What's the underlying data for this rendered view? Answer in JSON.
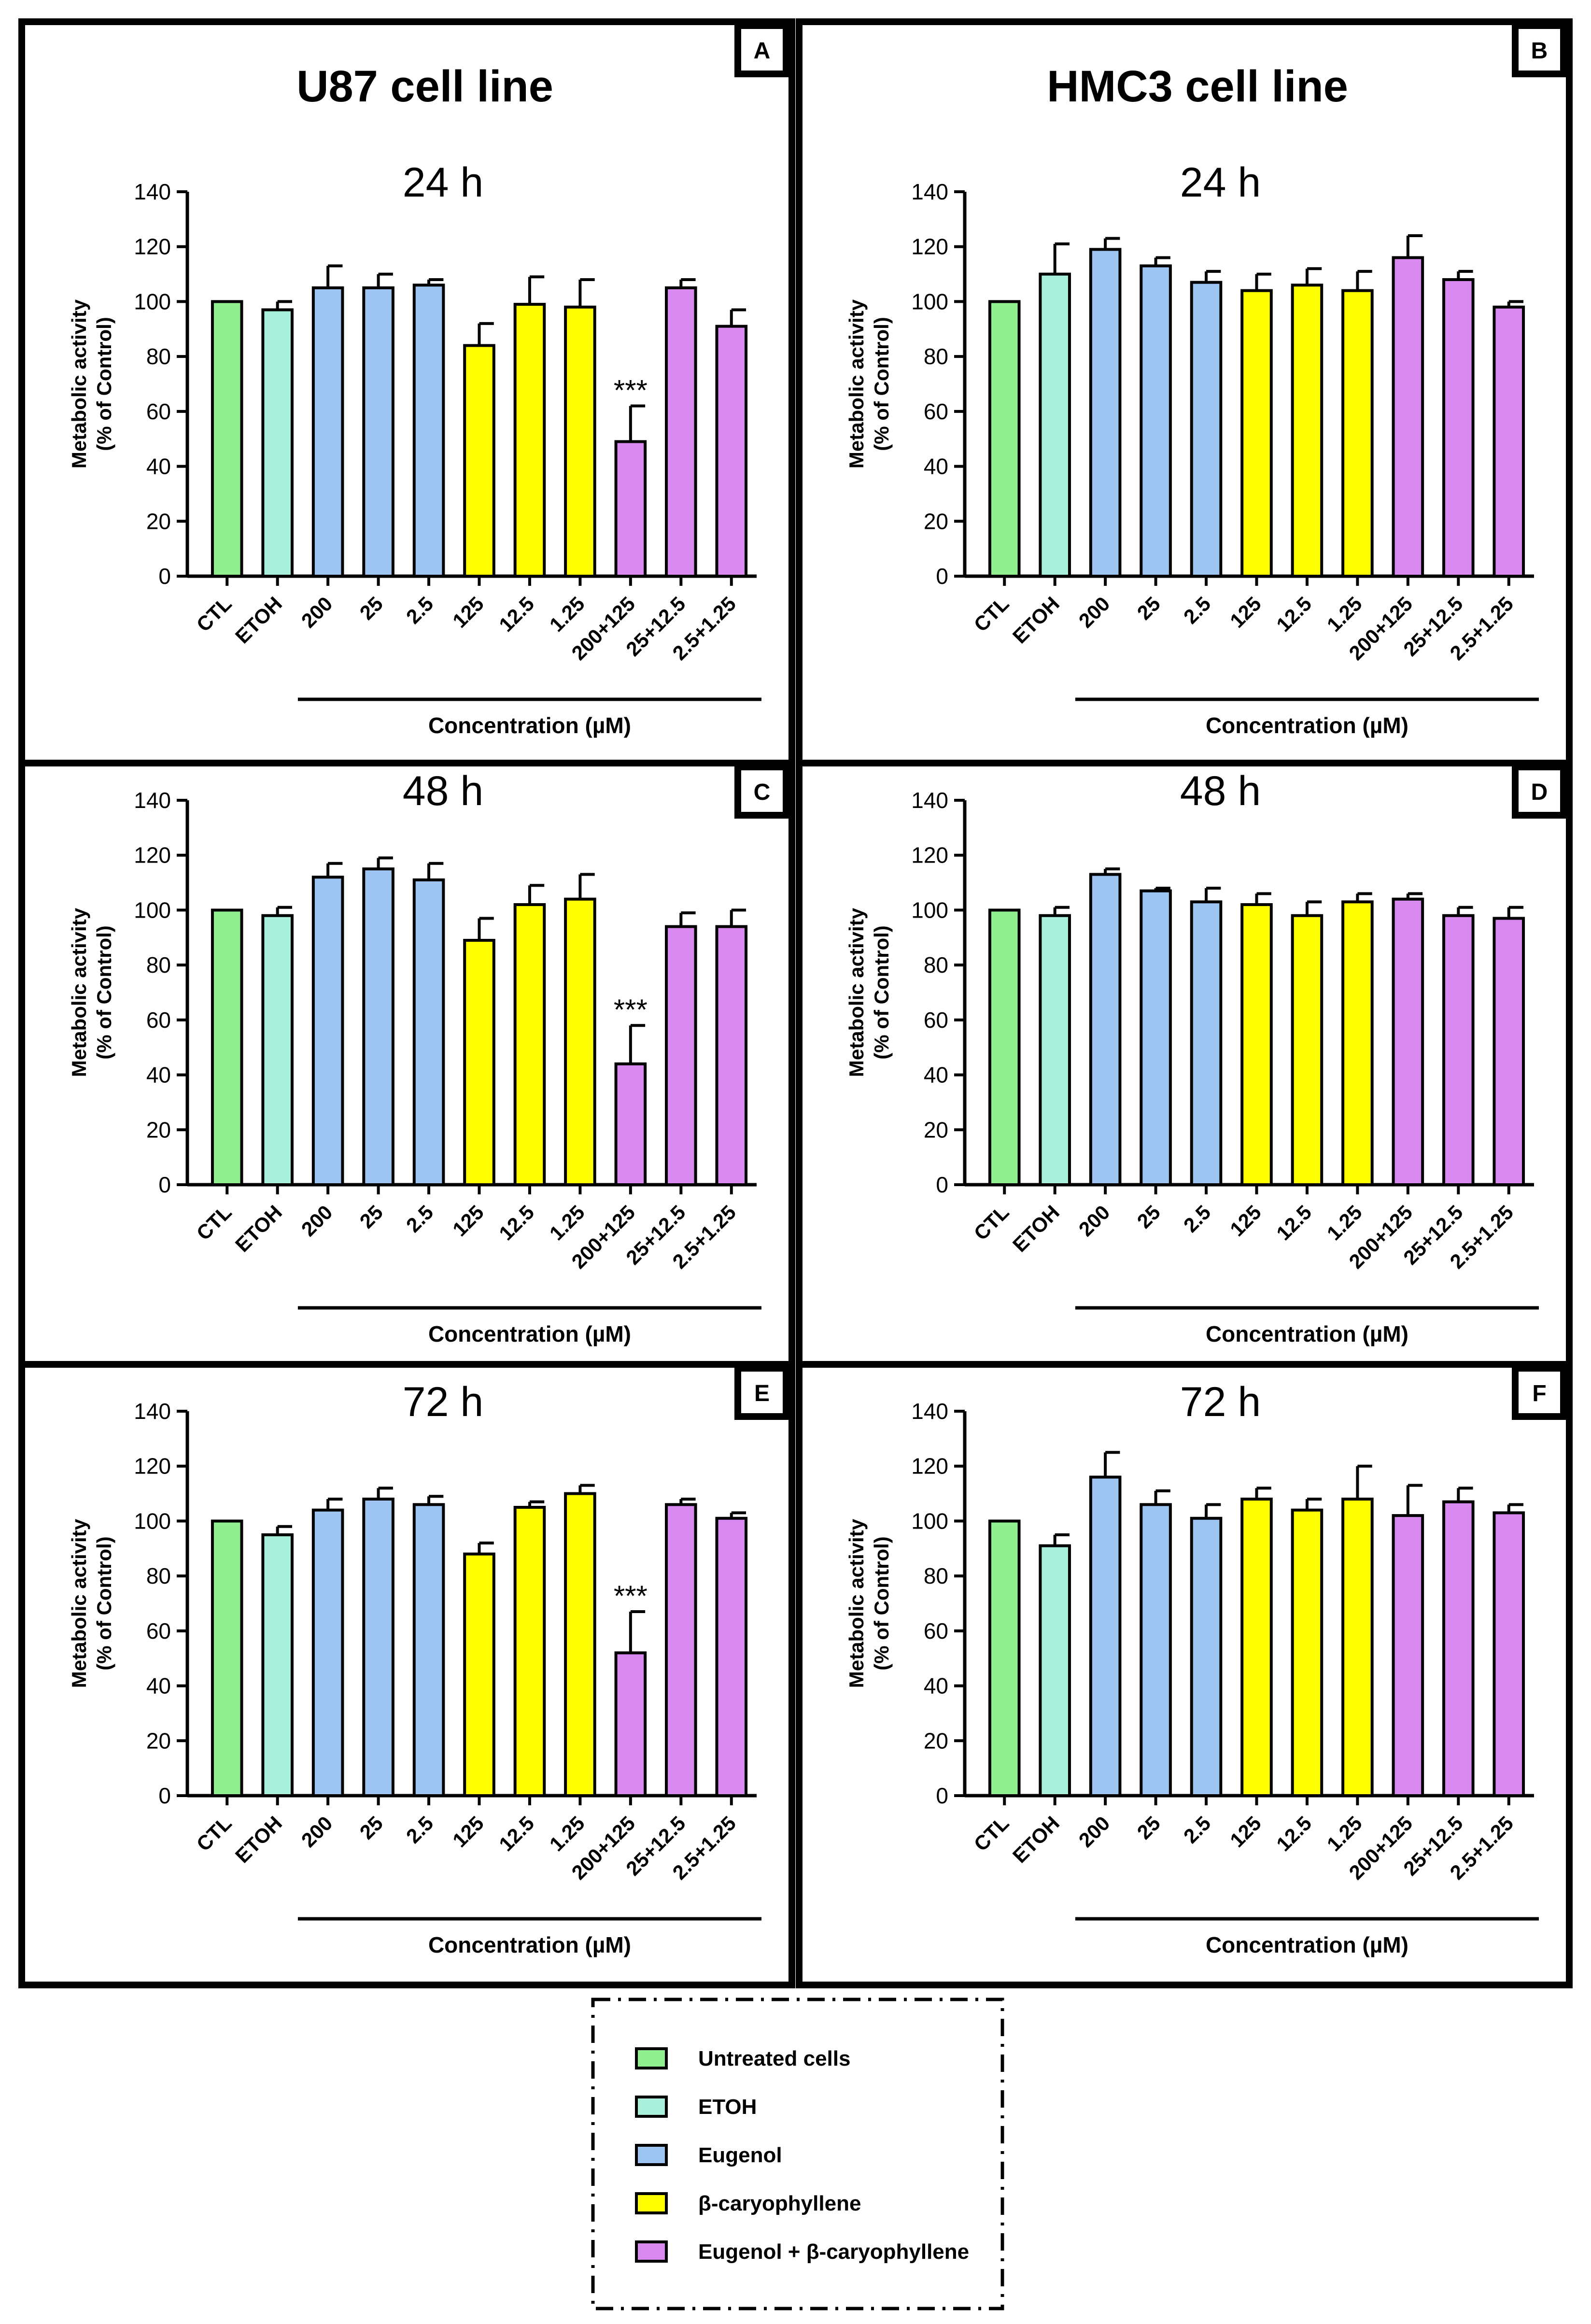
{
  "figure": {
    "col_titles": [
      "U87 cell line",
      "HMC3 cell line"
    ],
    "legend": [
      {
        "label": "Untreated cells",
        "color": "#90f090"
      },
      {
        "label": "ETOH",
        "color": "#a8f0dc"
      },
      {
        "label": "Eugenol",
        "color": "#9ec4f2"
      },
      {
        "label": "β-caryophyllene",
        "color": "#ffff00"
      },
      {
        "label": "Eugenol + β-caryophyllene",
        "color": "#d88af0"
      }
    ]
  },
  "chart_data": [
    {
      "panel_letter": "A",
      "title": "24 h",
      "type": "bar",
      "ylabel": [
        "Metabolic activity",
        "(% of Control)"
      ],
      "xlabel": "Concentration (µM)",
      "categories": [
        "CTL",
        "ETOH",
        "200",
        "25",
        "2.5",
        "125",
        "12.5",
        "1.25",
        "200+125",
        "25+12.5",
        "2.5+1.25"
      ],
      "groups": [
        "Untreated cells",
        "ETOH",
        "Eugenol",
        "Eugenol",
        "Eugenol",
        "β-caryophyllene",
        "β-caryophyllene",
        "β-caryophyllene",
        "Eugenol + β-caryophyllene",
        "Eugenol + β-caryophyllene",
        "Eugenol + β-caryophyllene"
      ],
      "values": [
        100,
        97,
        105,
        105,
        106,
        84,
        99,
        98,
        49,
        105,
        91
      ],
      "errors": [
        0,
        3,
        8,
        5,
        2,
        8,
        10,
        10,
        13,
        3,
        6
      ],
      "annotations": {
        "200+125": "***"
      },
      "ylim": [
        0,
        140
      ],
      "yticks": [
        0,
        20,
        40,
        60,
        80,
        100,
        120,
        140
      ]
    },
    {
      "panel_letter": "B",
      "title": "24 h",
      "type": "bar",
      "ylabel": [
        "Metabolic activity",
        "(% of Control)"
      ],
      "xlabel": "Concentration (µM)",
      "categories": [
        "CTL",
        "ETOH",
        "200",
        "25",
        "2.5",
        "125",
        "12.5",
        "1.25",
        "200+125",
        "25+12.5",
        "2.5+1.25"
      ],
      "groups": [
        "Untreated cells",
        "ETOH",
        "Eugenol",
        "Eugenol",
        "Eugenol",
        "β-caryophyllene",
        "β-caryophyllene",
        "β-caryophyllene",
        "Eugenol + β-caryophyllene",
        "Eugenol + β-caryophyllene",
        "Eugenol + β-caryophyllene"
      ],
      "values": [
        100,
        110,
        119,
        113,
        107,
        104,
        106,
        104,
        116,
        108,
        98
      ],
      "errors": [
        0,
        11,
        4,
        3,
        4,
        6,
        6,
        7,
        8,
        3,
        2
      ],
      "annotations": {},
      "ylim": [
        0,
        140
      ],
      "yticks": [
        0,
        20,
        40,
        60,
        80,
        100,
        120,
        140
      ]
    },
    {
      "panel_letter": "C",
      "title": "48 h",
      "type": "bar",
      "ylabel": [
        "Metabolic activity",
        "(% of Control)"
      ],
      "xlabel": "Concentration (µM)",
      "categories": [
        "CTL",
        "ETOH",
        "200",
        "25",
        "2.5",
        "125",
        "12.5",
        "1.25",
        "200+125",
        "25+12.5",
        "2.5+1.25"
      ],
      "groups": [
        "Untreated cells",
        "ETOH",
        "Eugenol",
        "Eugenol",
        "Eugenol",
        "β-caryophyllene",
        "β-caryophyllene",
        "β-caryophyllene",
        "Eugenol + β-caryophyllene",
        "Eugenol + β-caryophyllene",
        "Eugenol + β-caryophyllene"
      ],
      "values": [
        100,
        98,
        112,
        115,
        111,
        89,
        102,
        104,
        44,
        94,
        94
      ],
      "errors": [
        0,
        3,
        5,
        4,
        6,
        8,
        7,
        9,
        14,
        5,
        6
      ],
      "annotations": {
        "200+125": "***"
      },
      "ylim": [
        0,
        140
      ],
      "yticks": [
        0,
        20,
        40,
        60,
        80,
        100,
        120,
        140
      ]
    },
    {
      "panel_letter": "D",
      "title": "48 h",
      "type": "bar",
      "ylabel": [
        "Metabolic activity",
        "(% of Control)"
      ],
      "xlabel": "Concentration (µM)",
      "categories": [
        "CTL",
        "ETOH",
        "200",
        "25",
        "2.5",
        "125",
        "12.5",
        "1.25",
        "200+125",
        "25+12.5",
        "2.5+1.25"
      ],
      "groups": [
        "Untreated cells",
        "ETOH",
        "Eugenol",
        "Eugenol",
        "Eugenol",
        "β-caryophyllene",
        "β-caryophyllene",
        "β-caryophyllene",
        "Eugenol + β-caryophyllene",
        "Eugenol + β-caryophyllene",
        "Eugenol + β-caryophyllene"
      ],
      "values": [
        100,
        98,
        113,
        107,
        103,
        102,
        98,
        103,
        104,
        98,
        97
      ],
      "errors": [
        0,
        3,
        2,
        1,
        5,
        4,
        5,
        3,
        2,
        3,
        4
      ],
      "annotations": {},
      "ylim": [
        0,
        140
      ],
      "yticks": [
        0,
        20,
        40,
        60,
        80,
        100,
        120,
        140
      ]
    },
    {
      "panel_letter": "E",
      "title": "72 h",
      "type": "bar",
      "ylabel": [
        "Metabolic activity",
        "(% of Control)"
      ],
      "xlabel": "Concentration (µM)",
      "categories": [
        "CTL",
        "ETOH",
        "200",
        "25",
        "2.5",
        "125",
        "12.5",
        "1.25",
        "200+125",
        "25+12.5",
        "2.5+1.25"
      ],
      "groups": [
        "Untreated cells",
        "ETOH",
        "Eugenol",
        "Eugenol",
        "Eugenol",
        "β-caryophyllene",
        "β-caryophyllene",
        "β-caryophyllene",
        "Eugenol + β-caryophyllene",
        "Eugenol + β-caryophyllene",
        "Eugenol + β-caryophyllene"
      ],
      "values": [
        100,
        95,
        104,
        108,
        106,
        88,
        105,
        110,
        52,
        106,
        101
      ],
      "errors": [
        0,
        3,
        4,
        4,
        3,
        4,
        2,
        3,
        15,
        2,
        2
      ],
      "annotations": {
        "200+125": "***"
      },
      "ylim": [
        0,
        140
      ],
      "yticks": [
        0,
        20,
        40,
        60,
        80,
        100,
        120,
        140
      ]
    },
    {
      "panel_letter": "F",
      "title": "72 h",
      "type": "bar",
      "ylabel": [
        "Metabolic activity",
        "(% of Control)"
      ],
      "xlabel": "Concentration (µM)",
      "categories": [
        "CTL",
        "ETOH",
        "200",
        "25",
        "2.5",
        "125",
        "12.5",
        "1.25",
        "200+125",
        "25+12.5",
        "2.5+1.25"
      ],
      "groups": [
        "Untreated cells",
        "ETOH",
        "Eugenol",
        "Eugenol",
        "Eugenol",
        "β-caryophyllene",
        "β-caryophyllene",
        "β-caryophyllene",
        "Eugenol + β-caryophyllene",
        "Eugenol + β-caryophyllene",
        "Eugenol + β-caryophyllene"
      ],
      "values": [
        100,
        91,
        116,
        106,
        101,
        108,
        104,
        108,
        102,
        107,
        103
      ],
      "errors": [
        0,
        4,
        9,
        5,
        5,
        4,
        4,
        12,
        11,
        5,
        3
      ],
      "annotations": {},
      "ylim": [
        0,
        140
      ],
      "yticks": [
        0,
        20,
        40,
        60,
        80,
        100,
        120,
        140
      ]
    }
  ]
}
